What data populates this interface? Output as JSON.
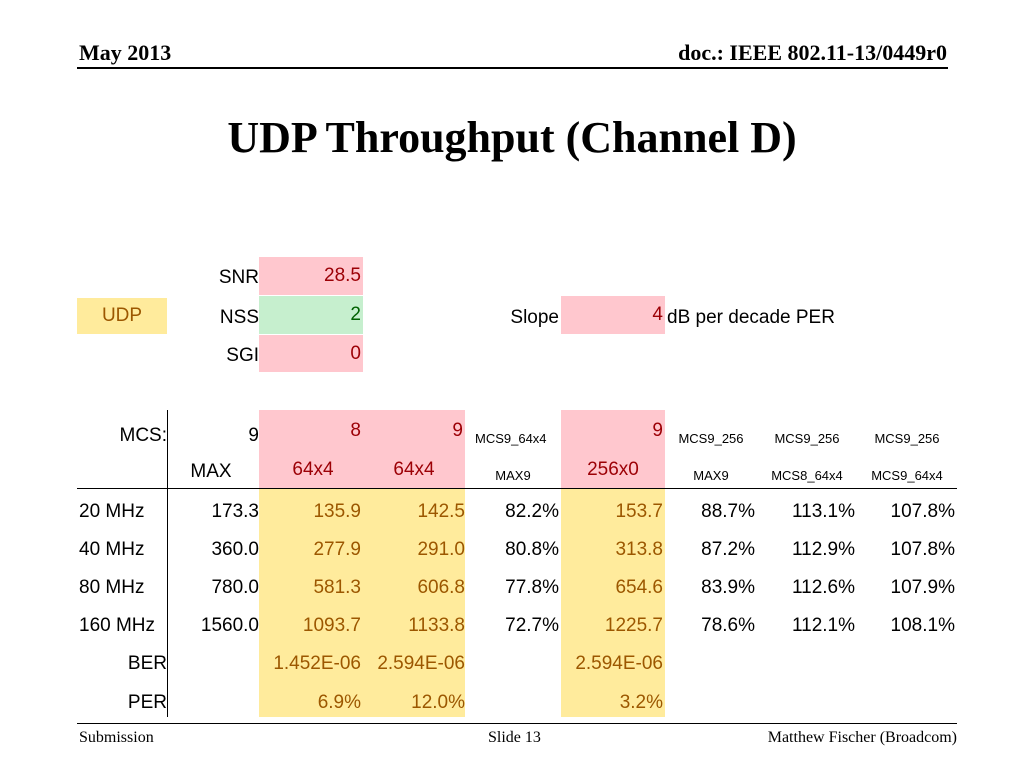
{
  "header": {
    "date": "May 2013",
    "doc": "doc.: IEEE 802.11-13/0449r0"
  },
  "title": "UDP Throughput (Channel D)",
  "footer": {
    "left": "Submission",
    "center": "Slide 13",
    "right": "Matthew Fischer (Broadcom)"
  },
  "params": {
    "udp_label": "UDP",
    "snr_label": "SNR",
    "snr_value": "28.5",
    "nss_label": "NSS",
    "nss_value": "2",
    "sgi_label": "SGI",
    "sgi_value": "0",
    "slope_label": "Slope",
    "slope_value": "4",
    "slope_unit": "dB per decade PER"
  },
  "table": {
    "header1": [
      "MCS:",
      "9",
      "8",
      "9",
      "MCS9_64x4",
      "9",
      "MCS9_256",
      "MCS9_256",
      "MCS9_256"
    ],
    "header2": [
      "",
      "MAX",
      "64x4",
      "64x4",
      "MAX9",
      "256x0",
      "MAX9",
      "MCS8_64x4",
      "MCS9_64x4"
    ],
    "rows": [
      [
        "20 MHz",
        "173.3",
        "135.9",
        "142.5",
        "82.2%",
        "153.7",
        "88.7%",
        "113.1%",
        "107.8%"
      ],
      [
        "40 MHz",
        "360.0",
        "277.9",
        "291.0",
        "80.8%",
        "313.8",
        "87.2%",
        "112.9%",
        "107.8%"
      ],
      [
        "80 MHz",
        "780.0",
        "581.3",
        "606.8",
        "77.8%",
        "654.6",
        "83.9%",
        "112.6%",
        "107.9%"
      ],
      [
        "160 MHz",
        "1560.0",
        "1093.7",
        "1133.8",
        "72.7%",
        "1225.7",
        "78.6%",
        "112.1%",
        "108.1%"
      ],
      [
        "BER",
        "",
        "1.452E-06",
        "2.594E-06",
        "",
        "2.594E-06",
        "",
        "",
        ""
      ],
      [
        "PER",
        "",
        "6.9%",
        "12.0%",
        "",
        "3.2%",
        "",
        "",
        ""
      ]
    ]
  },
  "colors": {
    "pink": "#ffc7ce",
    "green": "#c6efce",
    "yellow": "#ffeb9c",
    "red_text": "#9c0006",
    "green_text": "#006100",
    "brown_text": "#9c5700"
  }
}
